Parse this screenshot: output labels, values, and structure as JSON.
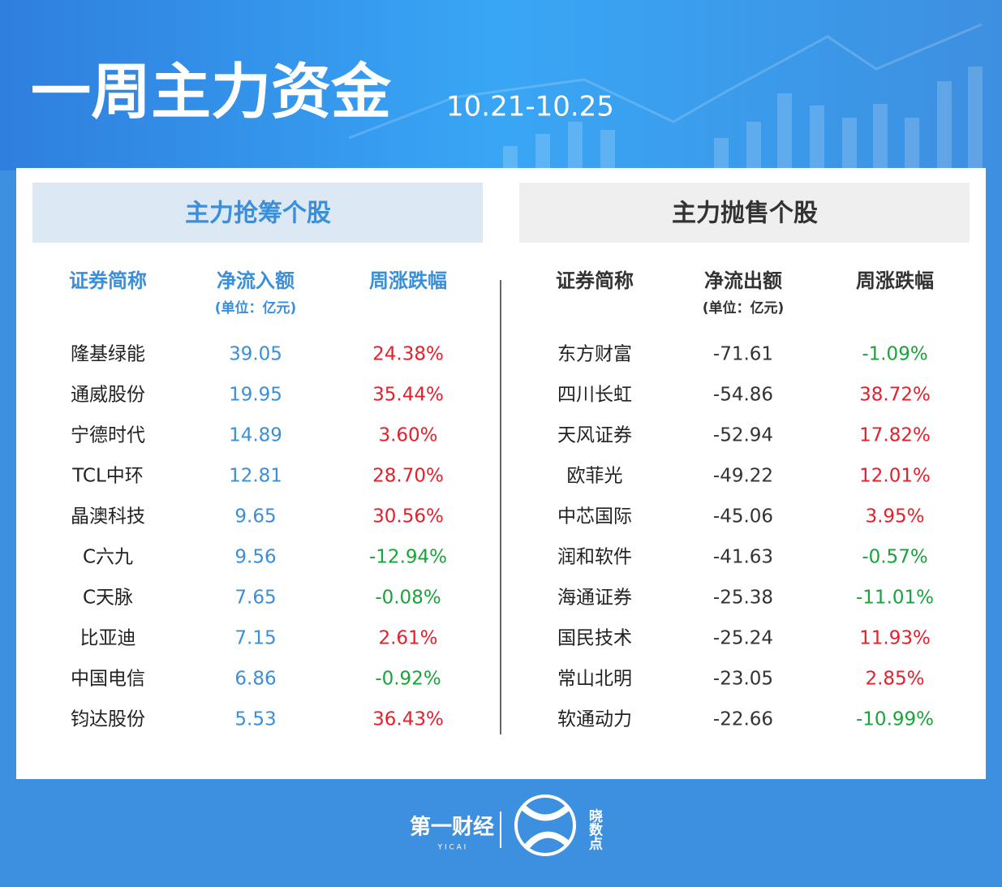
{
  "header": {
    "title": "一周主力资金",
    "date_range": "10.21-10.25"
  },
  "tables": [
    {
      "title": "主力抢筹个股",
      "columns": [
        "证券简称",
        "净流入额",
        "周涨跌幅"
      ],
      "unit": "(单位：亿元)",
      "rows": [
        [
          "隆基绿能",
          "39.05",
          "24.38%"
        ],
        [
          "通威股份",
          "19.95",
          "35.44%"
        ],
        [
          "宁德时代",
          "14.89",
          "3.60%"
        ],
        [
          "TCL中环",
          "12.81",
          "28.70%"
        ],
        [
          "晶澳科技",
          "9.65",
          "30.56%"
        ],
        [
          "C六九",
          "9.56",
          "-12.94%"
        ],
        [
          "C天脉",
          "7.65",
          "-0.08%"
        ],
        [
          "比亚迪",
          "7.15",
          "2.61%"
        ],
        [
          "中国电信",
          "6.86",
          "-0.92%"
        ],
        [
          "钧达股份",
          "5.53",
          "36.43%"
        ]
      ]
    },
    {
      "title": "主力抛售个股",
      "columns": [
        "证券简称",
        "净流出额",
        "周涨跌幅"
      ],
      "unit": "(单位：亿元)",
      "rows": [
        [
          "东方财富",
          "-71.61",
          "-1.09%"
        ],
        [
          "四川长虹",
          "-54.86",
          "38.72%"
        ],
        [
          "天风证券",
          "-52.94",
          "17.82%"
        ],
        [
          "欧菲光",
          "-49.22",
          "12.01%"
        ],
        [
          "中芯国际",
          "-45.06",
          "3.95%"
        ],
        [
          "润和软件",
          "-41.63",
          "-0.57%"
        ],
        [
          "海通证券",
          "-25.38",
          "-11.01%"
        ],
        [
          "国民技术",
          "-25.24",
          "11.93%"
        ],
        [
          "常山北明",
          "-23.05",
          "2.85%"
        ],
        [
          "软通动力",
          "-22.66",
          "-10.99%"
        ]
      ]
    }
  ],
  "footer": {
    "brand": "第一财经",
    "brand_en": "Y I C A I",
    "product": "晓数点"
  }
}
